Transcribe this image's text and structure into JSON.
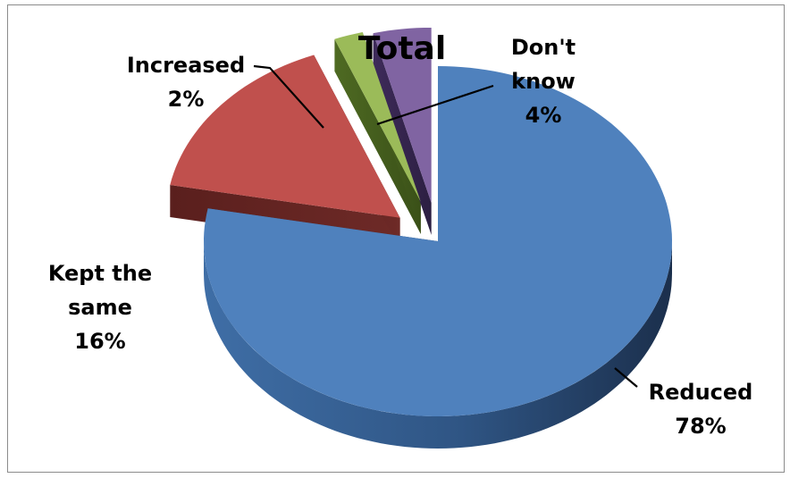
{
  "chart_data": {
    "type": "pie",
    "title": "Total",
    "categories": [
      "Reduced",
      "Kept the same",
      "Increased",
      "Don't know"
    ],
    "values": [
      78,
      16,
      2,
      4
    ],
    "value_labels": [
      "78%",
      "16%",
      "2%",
      "4%"
    ],
    "label_lines": [
      [
        "Reduced",
        "78%"
      ],
      [
        "Kept the",
        "same",
        "16%"
      ],
      [
        "Increased",
        "2%"
      ],
      [
        "Don't",
        "know",
        "4%"
      ]
    ],
    "colors": [
      "#4f81bd",
      "#c0504d",
      "#9bbb59",
      "#8064a2"
    ],
    "legend": "none",
    "style": "3d-exploded"
  }
}
